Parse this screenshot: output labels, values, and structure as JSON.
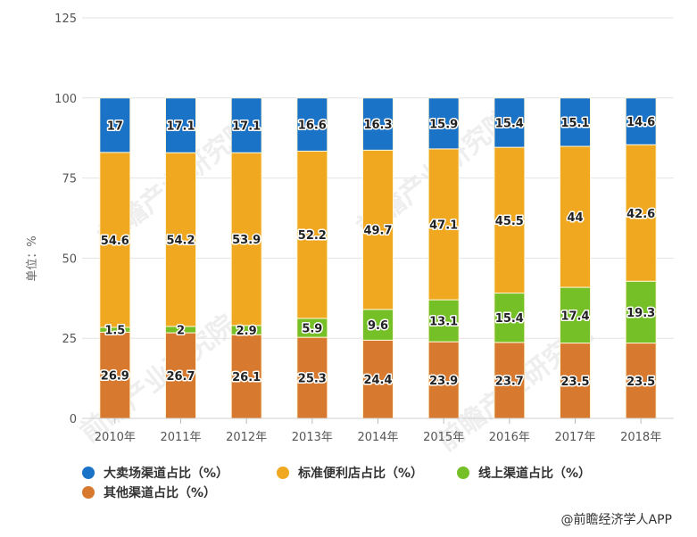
{
  "chart_data": {
    "type": "bar",
    "stacked": true,
    "title": "",
    "xlabel": "",
    "ylabel": "单位：%",
    "ylim": [
      0,
      125
    ],
    "yticks": [
      0,
      25,
      50,
      75,
      100,
      125
    ],
    "grid": true,
    "legend_position": "bottom",
    "categories": [
      "2010年",
      "2011年",
      "2012年",
      "2013年",
      "2014年",
      "2015年",
      "2016年",
      "2017年",
      "2018年"
    ],
    "series": [
      {
        "name": "其他渠道占比（%）",
        "color": "#d7792e",
        "values": [
          26.9,
          26.7,
          26.1,
          25.3,
          24.4,
          23.9,
          23.7,
          23.5,
          23.5
        ]
      },
      {
        "name": "线上渠道占比（%）",
        "color": "#75c026",
        "values": [
          1.5,
          2,
          2.9,
          5.9,
          9.6,
          13.1,
          15.4,
          17.4,
          19.3
        ]
      },
      {
        "name": "标准便利店占比（%）",
        "color": "#f0a821",
        "values": [
          54.6,
          54.2,
          53.9,
          52.2,
          49.7,
          47.1,
          45.5,
          44,
          42.6
        ]
      },
      {
        "name": "大卖场渠道占比（%）",
        "color": "#1a73c6",
        "values": [
          17,
          17.1,
          17.1,
          16.6,
          16.3,
          15.9,
          15.4,
          15.1,
          14.6
        ]
      }
    ]
  },
  "legend": {
    "items": [
      {
        "label": "大卖场渠道占比（%）",
        "color": "#1a73c6"
      },
      {
        "label": "标准便利店占比（%）",
        "color": "#f0a821"
      },
      {
        "label": "线上渠道占比（%）",
        "color": "#75c026"
      },
      {
        "label": "其他渠道占比（%）",
        "color": "#d7792e"
      }
    ]
  },
  "source": "@前瞻经济学人APP",
  "watermark": "前瞻产业研究院"
}
